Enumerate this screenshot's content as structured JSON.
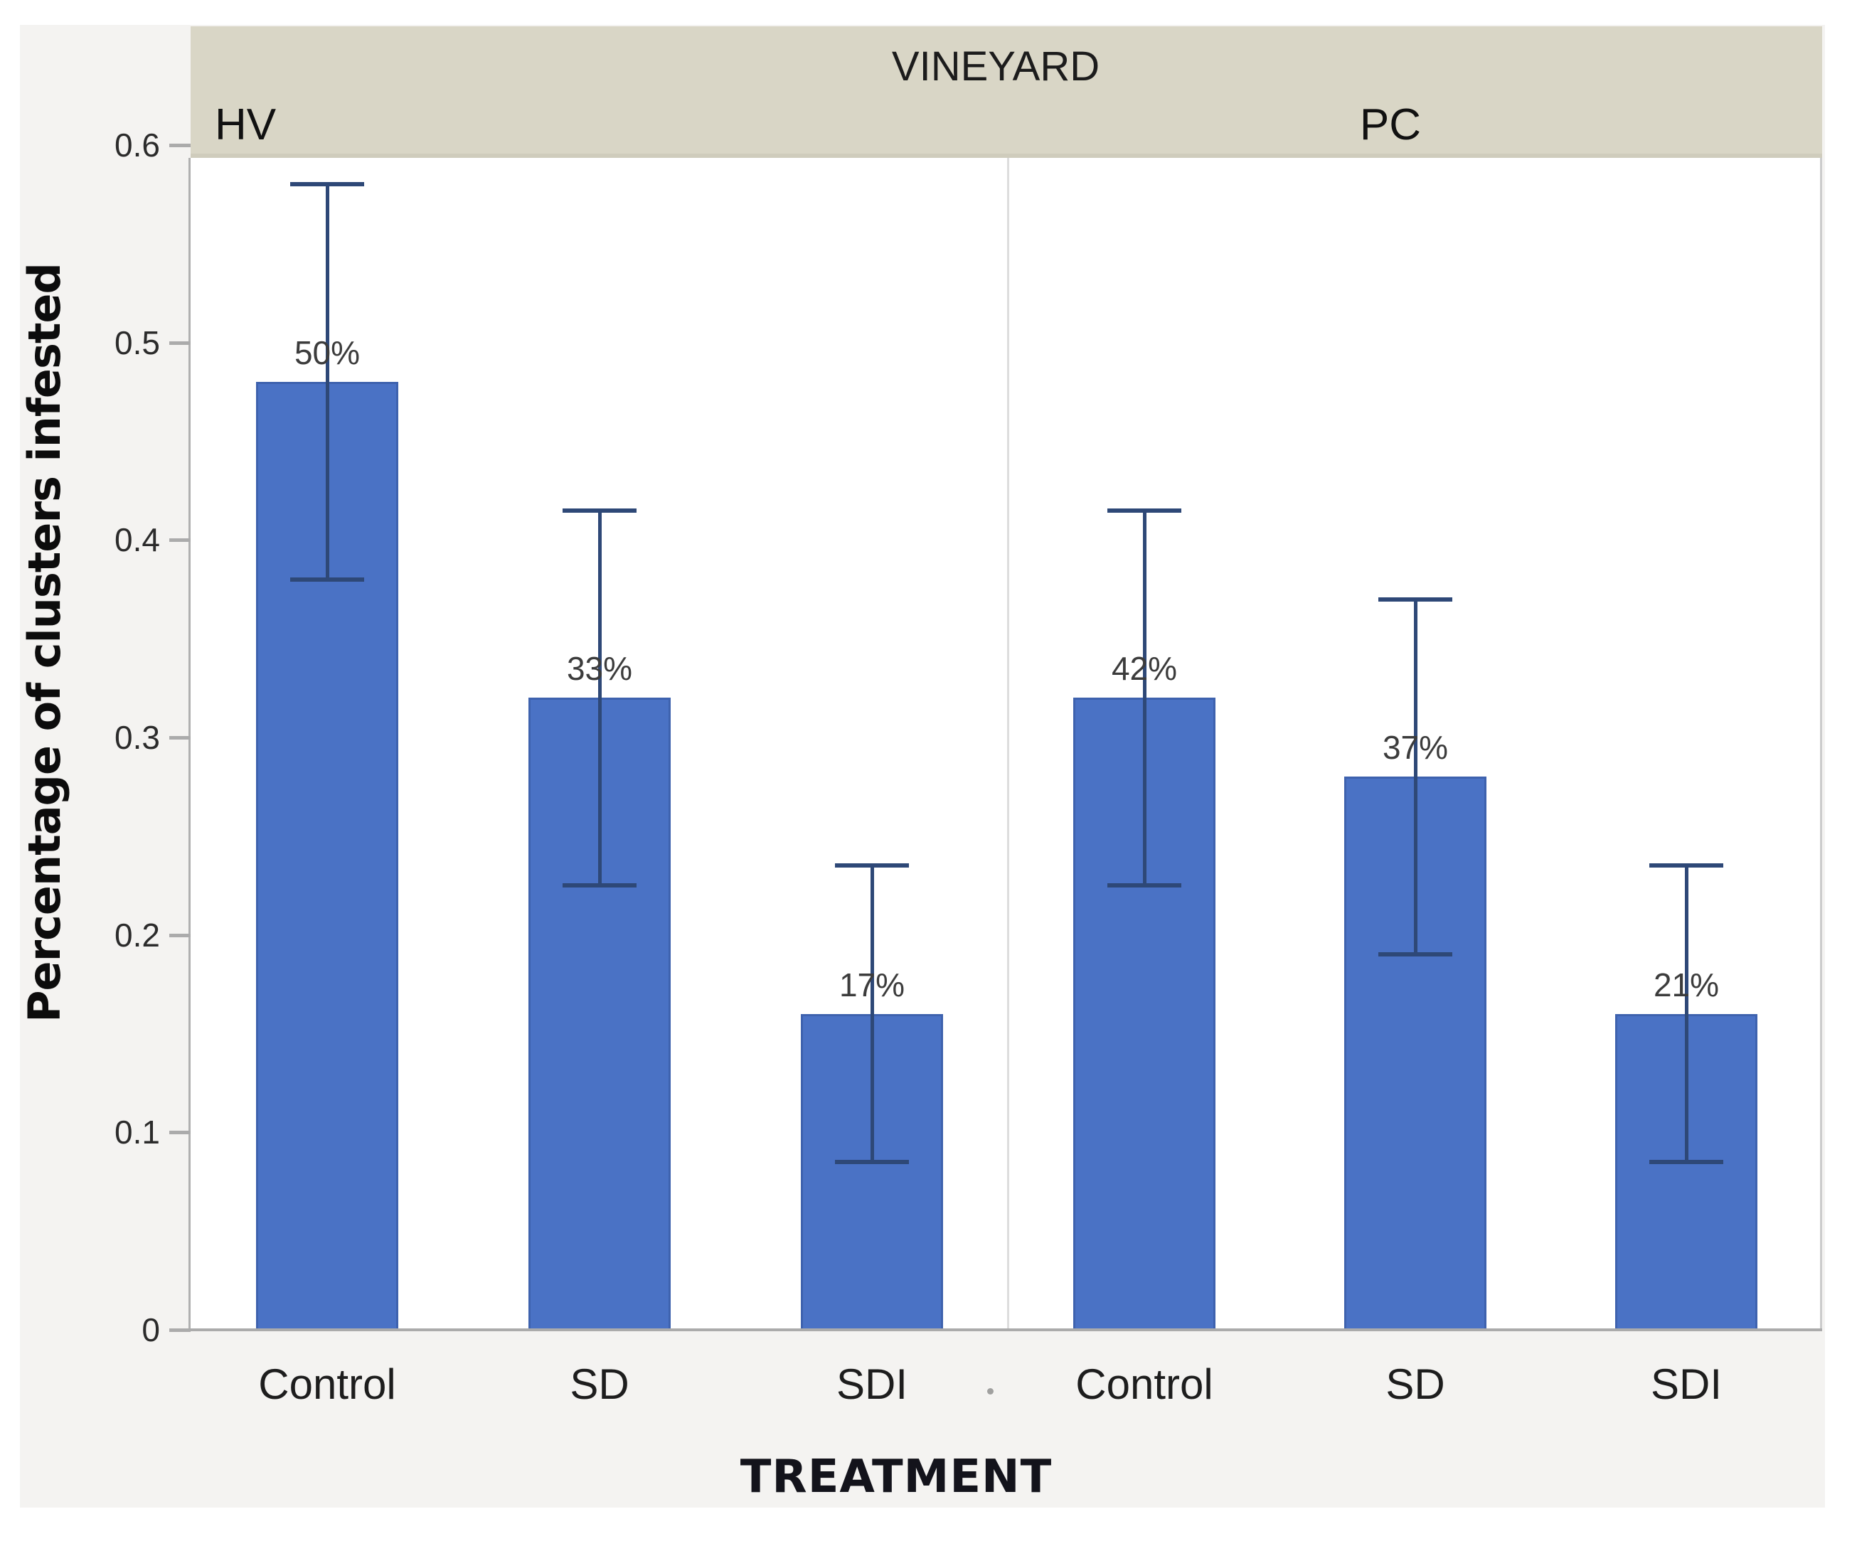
{
  "chart_data": {
    "type": "bar",
    "title": "VINEYARD",
    "xlabel": "TREATMENT",
    "ylabel": "Percentage of clusters infested",
    "ytick_labels": [
      "0",
      "0.1",
      "0.2",
      "0.3",
      "0.4",
      "0.5",
      "0.6"
    ],
    "yticks": [
      0,
      0.1,
      0.2,
      0.3,
      0.4,
      0.5,
      0.6
    ],
    "ylim": [
      0,
      0.6
    ],
    "grid": false,
    "legend": false,
    "panels": [
      {
        "label": "HV",
        "categories": [
          "Control",
          "SD",
          "SDI"
        ],
        "values": [
          0.48,
          0.32,
          0.16
        ],
        "bar_labels": [
          "50%",
          "33%",
          "17%"
        ],
        "error_low": [
          0.38,
          0.225,
          0.085
        ],
        "error_high": [
          0.58,
          0.415,
          0.235
        ]
      },
      {
        "label": "PC",
        "categories": [
          "Control",
          "SD",
          "SDI"
        ],
        "values": [
          0.32,
          0.28,
          0.16
        ],
        "bar_labels": [
          "42%",
          "37%",
          "21%"
        ],
        "error_low": [
          0.225,
          0.19,
          0.085
        ],
        "error_high": [
          0.415,
          0.37,
          0.235
        ]
      }
    ],
    "colors": {
      "bar_fill": "#4a72c5",
      "bar_border": "#3e62ae",
      "error_bar": "#2e4877",
      "band_bg": "#d9d6c6",
      "figure_bg": "#f4f3f1",
      "axis_gray": "#ababab",
      "label_text": "#3c3c3c"
    }
  }
}
